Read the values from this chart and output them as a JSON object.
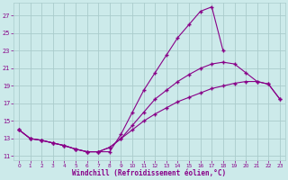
{
  "background_color": "#cceaea",
  "grid_color": "#aacccc",
  "line_color": "#880088",
  "xlabel": "Windchill (Refroidissement éolien,°C)",
  "xlabel_color": "#880088",
  "xlim_min": -0.5,
  "xlim_max": 23.5,
  "ylim_min": 10.5,
  "ylim_max": 28.5,
  "xticks": [
    0,
    1,
    2,
    3,
    4,
    5,
    6,
    7,
    8,
    9,
    10,
    11,
    12,
    13,
    14,
    15,
    16,
    17,
    18,
    19,
    20,
    21,
    22,
    23
  ],
  "yticks": [
    11,
    13,
    15,
    17,
    19,
    21,
    23,
    25,
    27
  ],
  "curve_top_x": [
    0,
    1,
    2,
    3,
    4,
    5,
    6,
    7,
    8,
    9,
    10,
    11,
    12,
    13,
    14,
    15,
    16,
    17,
    18
  ],
  "curve_top_y": [
    14,
    13,
    12.8,
    12.5,
    12.2,
    11.8,
    11.5,
    11.5,
    11.5,
    13.5,
    16.0,
    18.5,
    20.5,
    22.5,
    24.5,
    26.0,
    27.5,
    28.0,
    23.0
  ],
  "curve_mid_x": [
    0,
    1,
    2,
    3,
    4,
    5,
    6,
    7,
    8,
    9,
    10,
    11,
    12,
    13,
    14,
    15,
    16,
    17,
    18,
    19,
    20,
    21,
    22,
    23
  ],
  "curve_mid_y": [
    14,
    13,
    12.8,
    12.5,
    12.2,
    11.8,
    11.5,
    11.5,
    12.0,
    13.0,
    14.5,
    16.0,
    17.5,
    18.5,
    19.5,
    20.3,
    21.0,
    21.5,
    21.7,
    21.5,
    20.5,
    19.5,
    19.2,
    17.5
  ],
  "curve_bot_x": [
    0,
    1,
    2,
    3,
    4,
    5,
    6,
    7,
    8,
    9,
    10,
    11,
    12,
    13,
    14,
    15,
    16,
    17,
    18,
    19,
    20,
    21,
    22,
    23
  ],
  "curve_bot_y": [
    14,
    13,
    12.8,
    12.5,
    12.2,
    11.8,
    11.5,
    11.5,
    12.0,
    13.0,
    14.0,
    15.0,
    15.8,
    16.5,
    17.2,
    17.7,
    18.2,
    18.7,
    19.0,
    19.3,
    19.5,
    19.5,
    19.2,
    17.5
  ],
  "figsize": [
    3.2,
    2.0
  ],
  "dpi": 100
}
